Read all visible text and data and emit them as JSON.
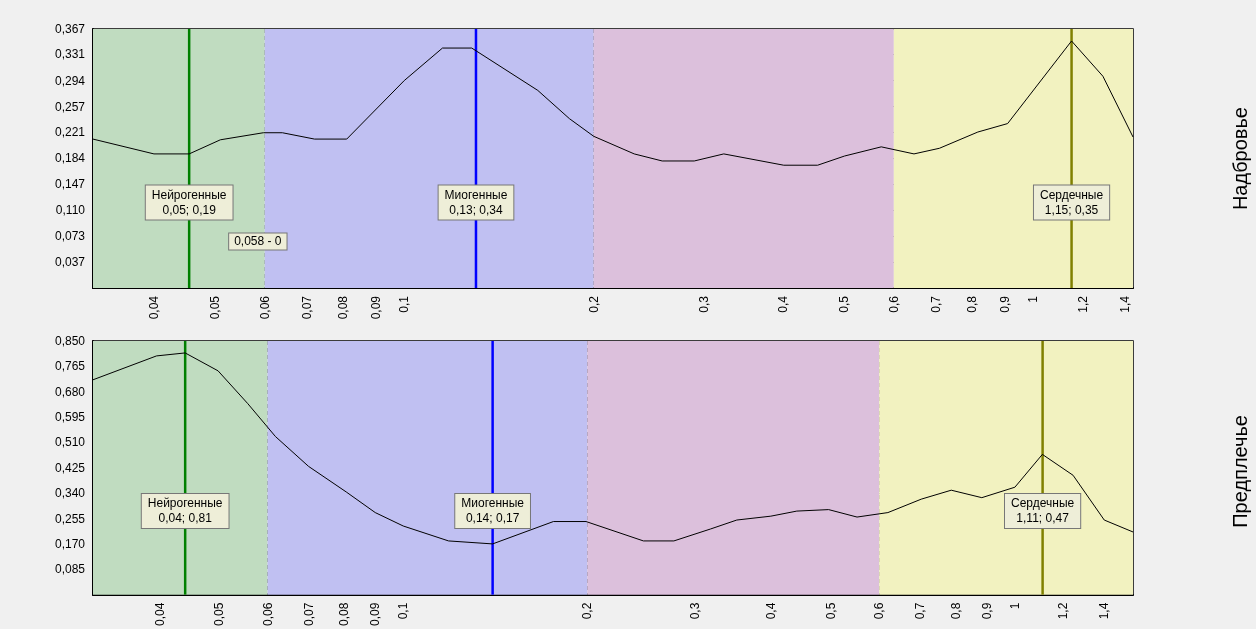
{
  "chart_data": [
    {
      "type": "line",
      "ylabel": "Надбровье",
      "color": "#000000",
      "marker": "none",
      "log": "x",
      "grid": true,
      "x": [
        0.032,
        0.04,
        0.0455,
        0.051,
        0.0597,
        0.064,
        0.072,
        0.081,
        0.1,
        0.115,
        0.128,
        0.163,
        0.183,
        0.2,
        0.232,
        0.257,
        0.289,
        0.322,
        0.401,
        0.454,
        0.501,
        0.573,
        0.646,
        0.709,
        0.816,
        0.91,
        1.15,
        1.29,
        1.44
      ],
      "values": [
        0.211,
        0.19,
        0.19,
        0.21,
        0.22,
        0.22,
        0.211,
        0.211,
        0.294,
        0.34,
        0.34,
        0.28,
        0.24,
        0.215,
        0.19,
        0.18,
        0.18,
        0.19,
        0.174,
        0.174,
        0.187,
        0.2,
        0.19,
        0.198,
        0.221,
        0.233,
        0.35,
        0.3,
        0.214
      ],
      "xlim": [
        0.032,
        1.44
      ],
      "ylim": [
        0,
        0.367
      ],
      "xticks": [
        {
          "value": 0.04,
          "label": "0,04"
        },
        {
          "value": 0.05,
          "label": "0,05"
        },
        {
          "value": 0.06,
          "label": "0,06"
        },
        {
          "value": 0.07,
          "label": "0,07"
        },
        {
          "value": 0.08,
          "label": "0,08"
        },
        {
          "value": 0.09,
          "label": "0,09"
        },
        {
          "value": 0.1,
          "label": "0,1"
        },
        {
          "value": 0.2,
          "label": "0,2"
        },
        {
          "value": 0.3,
          "label": "0,3"
        },
        {
          "value": 0.4,
          "label": "0,4"
        },
        {
          "value": 0.5,
          "label": "0,5"
        },
        {
          "value": 0.6,
          "label": "0,6"
        },
        {
          "value": 0.7,
          "label": "0,7"
        },
        {
          "value": 0.8,
          "label": "0,8"
        },
        {
          "value": 0.9,
          "label": "0,9"
        },
        1,
        {
          "value": 1.2,
          "label": "1,2"
        },
        {
          "value": 1.4,
          "label": "1,4"
        }
      ],
      "yticks": [
        {
          "value": 0.037,
          "label": "0,037"
        },
        {
          "value": 0.073,
          "label": "0,073"
        },
        {
          "value": 0.11,
          "label": "0,110"
        },
        {
          "value": 0.147,
          "label": "0,147"
        },
        {
          "value": 0.184,
          "label": "0,184"
        },
        {
          "value": 0.221,
          "label": "0,221"
        },
        {
          "value": 0.257,
          "label": "0,257"
        },
        {
          "value": 0.294,
          "label": "0,294"
        },
        {
          "value": 0.331,
          "label": "0,331"
        },
        {
          "value": 0.367,
          "label": "0,367"
        }
      ],
      "bands": [
        {
          "axis": "x",
          "from": 0.032,
          "to": 0.06,
          "color": "#c0dcc0"
        },
        {
          "axis": "x",
          "from": 0.06,
          "to": 0.2,
          "color": "#c0c0f2"
        },
        {
          "axis": "x",
          "from": 0.2,
          "to": 0.6,
          "color": "#dcc0dc"
        },
        {
          "axis": "x",
          "from": 0.6,
          "to": 1.44,
          "color": "#f2f2c0"
        }
      ],
      "ref_lines": [
        {
          "axis": "x",
          "value": 0.0455,
          "label": "Нейрогенные\n0,05; 0,19",
          "color": "#008000"
        },
        {
          "axis": "x",
          "value": 0.13,
          "label": "Миогенные\n0,13; 0,34",
          "color": "#0000ff"
        },
        {
          "axis": "x",
          "value": 1.15,
          "label": "Сердечные\n1,15; 0,35",
          "color": "#808000"
        }
      ],
      "annotations": [
        "0,058 - 0"
      ]
    },
    {
      "type": "line",
      "ylabel": "Предплечье",
      "color": "#000000",
      "marker": "none",
      "log": "x",
      "grid": true,
      "x": [
        0.0311,
        0.0395,
        0.044,
        0.0498,
        0.0557,
        0.0618,
        0.07,
        0.0807,
        0.09,
        0.1,
        0.1186,
        0.14,
        0.176,
        0.199,
        0.247,
        0.277,
        0.318,
        0.351,
        0.399,
        0.44,
        0.496,
        0.552,
        0.62,
        0.703,
        0.787,
        0.883,
        1.0,
        1.109,
        1.245,
        1.4,
        1.56
      ],
      "values": [
        0.72,
        0.8,
        0.81,
        0.75,
        0.64,
        0.53,
        0.43,
        0.344,
        0.275,
        0.23,
        0.18,
        0.17,
        0.245,
        0.245,
        0.18,
        0.18,
        0.22,
        0.25,
        0.263,
        0.28,
        0.285,
        0.26,
        0.275,
        0.32,
        0.35,
        0.325,
        0.36,
        0.47,
        0.4,
        0.25,
        0.21
      ],
      "xlim": [
        0.0311,
        1.56
      ],
      "ylim": [
        0,
        0.85
      ],
      "xticks": [
        {
          "value": 0.04,
          "label": "0,04"
        },
        {
          "value": 0.05,
          "label": "0,05"
        },
        {
          "value": 0.06,
          "label": "0,06"
        },
        {
          "value": 0.07,
          "label": "0,07"
        },
        {
          "value": 0.08,
          "label": "0,08"
        },
        {
          "value": 0.09,
          "label": "0,09"
        },
        {
          "value": 0.1,
          "label": "0,1"
        },
        {
          "value": 0.2,
          "label": "0,2"
        },
        {
          "value": 0.3,
          "label": "0,3"
        },
        {
          "value": 0.4,
          "label": "0,4"
        },
        {
          "value": 0.5,
          "label": "0,5"
        },
        {
          "value": 0.6,
          "label": "0,6"
        },
        {
          "value": 0.7,
          "label": "0,7"
        },
        {
          "value": 0.8,
          "label": "0,8"
        },
        {
          "value": 0.9,
          "label": "0,9"
        },
        1,
        {
          "value": 1.2,
          "label": "1,2"
        },
        {
          "value": 1.4,
          "label": "1,4"
        }
      ],
      "yticks": [
        {
          "value": 0.085,
          "label": "0,085"
        },
        {
          "value": 0.17,
          "label": "0,170"
        },
        {
          "value": 0.255,
          "label": "0,255"
        },
        {
          "value": 0.34,
          "label": "0,340"
        },
        {
          "value": 0.425,
          "label": "0,425"
        },
        {
          "value": 0.51,
          "label": "0,510"
        },
        {
          "value": 0.595,
          "label": "0,595"
        },
        {
          "value": 0.68,
          "label": "0,680"
        },
        {
          "value": 0.765,
          "label": "0,765"
        },
        {
          "value": 0.85,
          "label": "0,850"
        }
      ],
      "bands": [
        {
          "axis": "x",
          "from": 0.0311,
          "to": 0.06,
          "color": "#c0dcc0"
        },
        {
          "axis": "x",
          "from": 0.06,
          "to": 0.2,
          "color": "#c0c0f2"
        },
        {
          "axis": "x",
          "from": 0.2,
          "to": 0.6,
          "color": "#dcc0dc"
        },
        {
          "axis": "x",
          "from": 0.6,
          "to": 1.56,
          "color": "#f2f2c0"
        }
      ],
      "ref_lines": [
        {
          "axis": "x",
          "value": 0.044,
          "label": "Нейрогенные\n0,04; 0,81",
          "color": "#008000"
        },
        {
          "axis": "x",
          "value": 0.14,
          "label": "Миогенные\n0,14; 0,17",
          "color": "#0000ff"
        },
        {
          "axis": "x",
          "value": 1.11,
          "label": "Сердечные\n1,11; 0,47",
          "color": "#808000"
        }
      ]
    }
  ]
}
